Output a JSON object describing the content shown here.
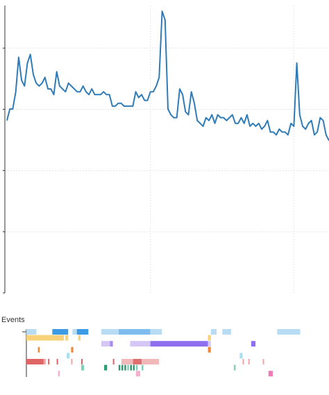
{
  "chart_data": {
    "type": "line",
    "title": "",
    "xlabel": "",
    "ylabel": "",
    "ylim": [
      0,
      100
    ],
    "xlim": [
      0,
      105
    ],
    "grid": true,
    "vgrid_at": [
      49,
      98
    ],
    "line_color": "#2e7bb8",
    "series": [
      {
        "values": [
          60,
          64,
          64,
          70,
          82,
          74,
          72,
          80,
          83,
          76,
          73,
          72,
          73,
          75,
          71,
          71,
          69,
          77,
          72,
          71,
          70,
          73,
          72,
          71,
          70,
          70,
          72,
          70,
          69,
          71,
          69,
          69,
          69,
          70,
          69,
          69,
          65,
          65,
          66,
          66,
          65,
          65,
          65,
          65,
          70,
          68,
          69,
          67,
          67,
          70,
          70,
          72,
          75,
          98,
          95,
          64,
          62,
          61,
          61,
          71,
          69,
          63,
          62,
          70,
          66,
          60,
          59,
          58,
          61,
          60,
          62,
          59,
          62,
          61,
          61,
          60,
          61,
          62,
          59,
          59,
          61,
          59,
          62,
          58,
          59,
          58,
          59,
          57,
          58,
          60,
          56,
          56,
          55,
          57,
          56,
          56,
          55,
          59,
          58,
          80,
          62,
          58,
          57,
          59,
          60,
          55,
          56,
          61,
          60,
          55,
          53
        ]
      }
    ]
  },
  "events": {
    "title": "Events",
    "rows": [
      {
        "segments": [
          {
            "s": 0,
            "e": 3.5,
            "c": "#b9dcf5"
          },
          {
            "s": 9,
            "e": 14.5,
            "c": "#3d9be6"
          },
          {
            "s": 16,
            "e": 17.5,
            "c": "#b9dcf5"
          },
          {
            "s": 17.5,
            "e": 21.5,
            "c": "#3d9be6"
          },
          {
            "s": 26,
            "e": 32,
            "c": "#b9dcf5"
          },
          {
            "s": 32,
            "e": 43,
            "c": "#7fbdf0"
          },
          {
            "s": 43,
            "e": 47,
            "c": "#b9dcf5"
          },
          {
            "s": 64,
            "e": 66,
            "c": "#b9dcf5"
          },
          {
            "s": 68,
            "e": 71,
            "c": "#b9dcf5"
          },
          {
            "s": 87,
            "e": 95,
            "c": "#b9dcf5"
          }
        ]
      },
      {
        "segments": [
          {
            "s": 0,
            "e": 13,
            "c": "#f7d27a"
          },
          {
            "s": 13.5,
            "e": 14.5,
            "c": "#f7d27a"
          },
          {
            "s": 18,
            "e": 18.8,
            "c": "#f7d27a"
          },
          {
            "s": 63,
            "e": 64,
            "c": "#f7d27a"
          }
        ]
      },
      {
        "segments": [
          {
            "s": 26,
            "e": 29,
            "c": "#d4c6f5"
          },
          {
            "s": 29,
            "e": 30,
            "c": "#a58cf0"
          },
          {
            "s": 36,
            "e": 43,
            "c": "#d4c6f5"
          },
          {
            "s": 43,
            "e": 63,
            "c": "#8e6ff0"
          },
          {
            "s": 63,
            "e": 64,
            "c": "#d4c6f5"
          },
          {
            "s": 78,
            "e": 79.5,
            "c": "#8e6ff0"
          }
        ]
      },
      {
        "segments": [
          {
            "s": 4,
            "e": 4.6,
            "c": "#f08a3a"
          },
          {
            "s": 15.5,
            "e": 16.3,
            "c": "#f08a3a"
          },
          {
            "s": 63,
            "e": 64,
            "c": "#f08a3a"
          }
        ]
      },
      {
        "segments": [
          {
            "s": 14,
            "e": 15,
            "c": "#a8e0f0"
          },
          {
            "s": 74,
            "e": 75,
            "c": "#a8e0f0"
          }
        ]
      },
      {
        "segments": [
          {
            "s": 0,
            "e": 6,
            "c": "#e06666"
          },
          {
            "s": 6,
            "e": 6.8,
            "c": "#f0a8a8"
          },
          {
            "s": 7.5,
            "e": 8,
            "c": "#e06666"
          },
          {
            "s": 10.5,
            "e": 11,
            "c": "#e06666"
          },
          {
            "s": 15.5,
            "e": 16,
            "c": "#f0a8a8"
          },
          {
            "s": 19,
            "e": 19.5,
            "c": "#e06666"
          },
          {
            "s": 30,
            "e": 30.5,
            "c": "#e06666"
          },
          {
            "s": 33,
            "e": 37,
            "c": "#f0b8b8"
          },
          {
            "s": 37,
            "e": 40,
            "c": "#e07070"
          },
          {
            "s": 40,
            "e": 46,
            "c": "#f0b8b8"
          },
          {
            "s": 75,
            "e": 75.5,
            "c": "#f0a8a8"
          },
          {
            "s": 77,
            "e": 77.5,
            "c": "#f0a8a8"
          },
          {
            "s": 82,
            "e": 82.5,
            "c": "#f0a8a8"
          }
        ]
      },
      {
        "segments": [
          {
            "s": 19,
            "e": 20,
            "c": "#7fd0b8"
          },
          {
            "s": 27,
            "e": 28,
            "c": "#2a9d70"
          },
          {
            "s": 32,
            "e": 32.6,
            "c": "#2a9d70"
          },
          {
            "s": 33,
            "e": 33.6,
            "c": "#2a9d70"
          },
          {
            "s": 34,
            "e": 34.6,
            "c": "#2a9d70"
          },
          {
            "s": 35,
            "e": 35.6,
            "c": "#7fd0b8"
          },
          {
            "s": 36,
            "e": 36.6,
            "c": "#2a9d70"
          },
          {
            "s": 37,
            "e": 37.6,
            "c": "#2a9d70"
          },
          {
            "s": 38,
            "e": 38.6,
            "c": "#7fd0b8"
          },
          {
            "s": 40,
            "e": 40.6,
            "c": "#7fd0b8"
          },
          {
            "s": 72,
            "e": 72.6,
            "c": "#7fd0b8"
          }
        ]
      },
      {
        "segments": [
          {
            "s": 11,
            "e": 11.6,
            "c": "#f5b0d0"
          },
          {
            "s": 38,
            "e": 39.5,
            "c": "#f5b0d0"
          },
          {
            "s": 84,
            "e": 85.5,
            "c": "#f07ab8"
          }
        ]
      }
    ]
  }
}
